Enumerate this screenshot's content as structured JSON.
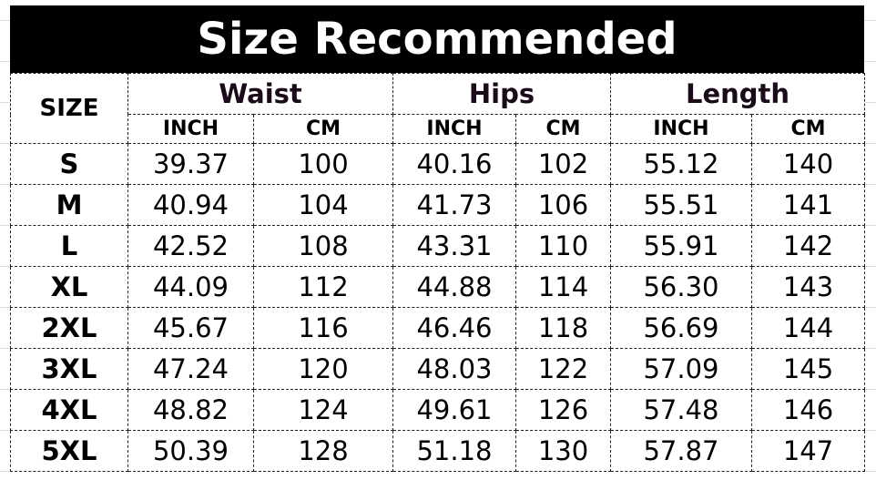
{
  "title": "Size Recommended",
  "headers": {
    "size": "SIZE",
    "groups": [
      "Waist",
      "Hips",
      "Length"
    ],
    "units": [
      "INCH",
      "CM",
      "INCH",
      "CM",
      "INCH",
      "CM"
    ]
  },
  "rows": [
    [
      "S",
      "39.37",
      "100",
      "40.16",
      "102",
      "55.12",
      "140"
    ],
    [
      "M",
      "40.94",
      "104",
      "41.73",
      "106",
      "55.51",
      "141"
    ],
    [
      "L",
      "42.52",
      "108",
      "43.31",
      "110",
      "55.91",
      "142"
    ],
    [
      "XL",
      "44.09",
      "112",
      "44.88",
      "114",
      "56.30",
      "143"
    ],
    [
      "2XL",
      "45.67",
      "116",
      "46.46",
      "118",
      "56.69",
      "144"
    ],
    [
      "3XL",
      "47.24",
      "120",
      "48.03",
      "122",
      "57.09",
      "145"
    ],
    [
      "4XL",
      "48.82",
      "124",
      "49.61",
      "126",
      "57.48",
      "146"
    ],
    [
      "5XL",
      "50.39",
      "128",
      "51.18",
      "130",
      "57.87",
      "147"
    ]
  ]
}
